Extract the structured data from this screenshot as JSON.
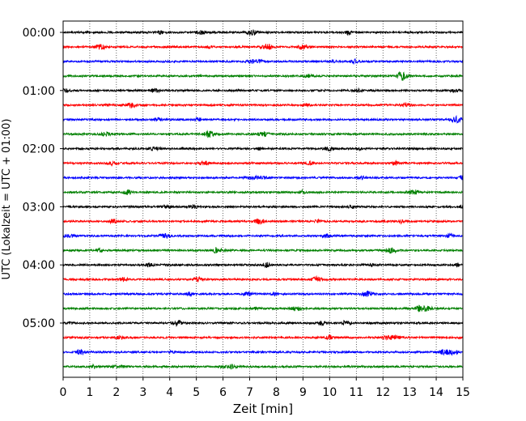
{
  "chart_data": {
    "type": "line",
    "title": "",
    "xlabel": "Zeit  [min]",
    "ylabel": "UTC (Lokalzeit = UTC + 01:00)",
    "xlim": [
      0,
      15
    ],
    "x_ticks": [
      0,
      1,
      2,
      3,
      4,
      5,
      6,
      7,
      8,
      9,
      10,
      11,
      12,
      13,
      14,
      15
    ],
    "x_tick_labels": [
      "0",
      "1",
      "2",
      "3",
      "4",
      "5",
      "6",
      "7",
      "8",
      "9",
      "10",
      "11",
      "12",
      "13",
      "14",
      "15"
    ],
    "y_tick_labels": [
      "00:00",
      "01:00",
      "02:00",
      "03:00",
      "04:00",
      "05:00"
    ],
    "trace_interval_min": 15,
    "trace_colors": [
      "#000000",
      "#ff0000",
      "#0000ff",
      "#008000"
    ],
    "grid": "vertical dotted at each minute",
    "series": [
      {
        "start": "00:00",
        "color": "#000000"
      },
      {
        "start": "00:15",
        "color": "#ff0000"
      },
      {
        "start": "00:30",
        "color": "#0000ff"
      },
      {
        "start": "00:45",
        "color": "#008000"
      },
      {
        "start": "01:00",
        "color": "#000000"
      },
      {
        "start": "01:15",
        "color": "#ff0000"
      },
      {
        "start": "01:30",
        "color": "#0000ff"
      },
      {
        "start": "01:45",
        "color": "#008000"
      },
      {
        "start": "02:00",
        "color": "#000000"
      },
      {
        "start": "02:15",
        "color": "#ff0000"
      },
      {
        "start": "02:30",
        "color": "#0000ff"
      },
      {
        "start": "02:45",
        "color": "#008000"
      },
      {
        "start": "03:00",
        "color": "#000000"
      },
      {
        "start": "03:15",
        "color": "#ff0000"
      },
      {
        "start": "03:30",
        "color": "#0000ff"
      },
      {
        "start": "03:45",
        "color": "#008000"
      },
      {
        "start": "04:00",
        "color": "#000000"
      },
      {
        "start": "04:15",
        "color": "#ff0000"
      },
      {
        "start": "04:30",
        "color": "#0000ff"
      },
      {
        "start": "04:45",
        "color": "#008000"
      },
      {
        "start": "05:00",
        "color": "#000000"
      },
      {
        "start": "05:15",
        "color": "#ff0000"
      },
      {
        "start": "05:30",
        "color": "#0000ff"
      },
      {
        "start": "05:45",
        "color": "#008000"
      }
    ]
  }
}
